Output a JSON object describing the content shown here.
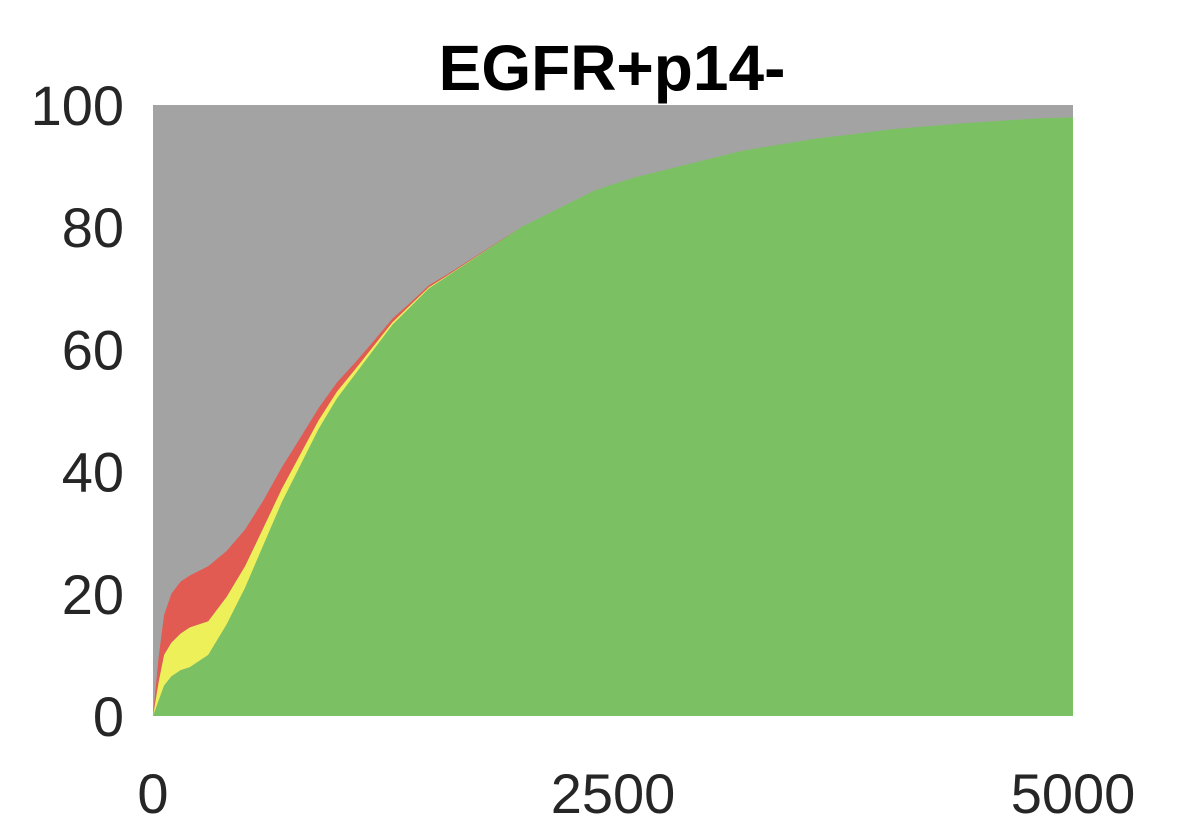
{
  "chart_data": {
    "type": "area",
    "stacked": true,
    "title": "EGFR+p14-",
    "xlabel": "",
    "ylabel": "",
    "xlim": [
      0,
      5000
    ],
    "ylim": [
      0,
      100
    ],
    "x_ticks": [
      "0",
      "2500",
      "5000"
    ],
    "y_ticks": [
      "0",
      "20",
      "40",
      "60",
      "80",
      "100"
    ],
    "grid": false,
    "legend": "none",
    "background_color": "#a3a3a3",
    "x": [
      0,
      30,
      60,
      100,
      150,
      200,
      300,
      400,
      500,
      600,
      700,
      800,
      900,
      1000,
      1100,
      1200,
      1300,
      1400,
      1500,
      1600,
      1800,
      2000,
      2200,
      2400,
      2600,
      2800,
      3000,
      3200,
      3400,
      3600,
      3800,
      4000,
      4200,
      4400,
      4600,
      4800,
      5000
    ],
    "series": [
      {
        "color": "#7bc063",
        "values": [
          0,
          2.5,
          5,
          6.5,
          7.5,
          8,
          10,
          15,
          21,
          28,
          35,
          41,
          47,
          52,
          56,
          60,
          64,
          67,
          70,
          72,
          76,
          80,
          83,
          86,
          88,
          89.5,
          91,
          92.5,
          93.5,
          94.5,
          95.2,
          96,
          96.5,
          97,
          97.4,
          97.8,
          98
        ]
      },
      {
        "color": "#eef05a",
        "values": [
          0,
          3,
          5,
          5.5,
          6,
          6.5,
          5.5,
          4.5,
          3.5,
          2.8,
          2.2,
          1.8,
          1.4,
          1.1,
          0.8,
          0.6,
          0.4,
          0.3,
          0.2,
          0.1,
          0.05,
          0,
          0,
          0,
          0,
          0,
          0,
          0,
          0,
          0,
          0,
          0,
          0,
          0,
          0,
          0,
          0
        ]
      },
      {
        "color": "#e15b52",
        "values": [
          0,
          4,
          6.5,
          8,
          8.5,
          8.5,
          9,
          7.5,
          6,
          4.5,
          3.5,
          2.7,
          2,
          1.5,
          1.1,
          0.8,
          0.6,
          0.4,
          0.3,
          0.2,
          0.1,
          0,
          0,
          0,
          0,
          0,
          0,
          0,
          0,
          0,
          0,
          0,
          0,
          0,
          0,
          0,
          0
        ]
      }
    ]
  }
}
